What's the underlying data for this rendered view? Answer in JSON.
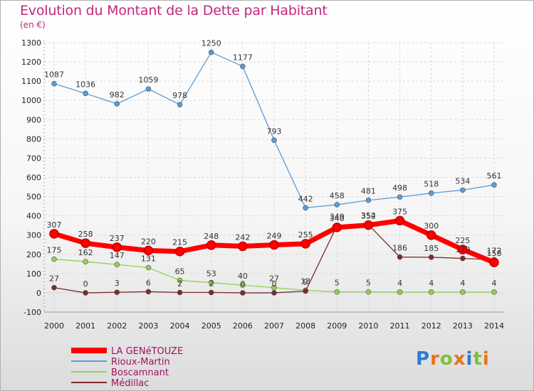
{
  "title": "Evolution du Montant de la Dette par Habitant",
  "subtitle": "(en €)",
  "logo": "Proxiti",
  "chart_data": {
    "type": "line",
    "title": "Evolution du Montant de la Dette par Habitant",
    "ylabel": "(en €)",
    "xlabel": "",
    "x": [
      2000,
      2001,
      2002,
      2003,
      2004,
      2005,
      2006,
      2007,
      2008,
      2009,
      2010,
      2011,
      2012,
      2013,
      2014
    ],
    "ylim": [
      -100,
      1300
    ],
    "yticks": [
      -100,
      0,
      100,
      200,
      300,
      400,
      500,
      600,
      700,
      800,
      900,
      1000,
      1100,
      1200,
      1300
    ],
    "grid": true,
    "legend": "bottom-left",
    "series": [
      {
        "name": "LA GENéTOUZE",
        "color": "#ff0000",
        "values": [
          307,
          258,
          237,
          220,
          215,
          248,
          242,
          249,
          255,
          340,
          352,
          375,
          300,
          225,
          158
        ]
      },
      {
        "name": "Rioux-Martin",
        "color": "#5b9bd5",
        "values": [
          1087,
          1036,
          982,
          1059,
          978,
          1250,
          1177,
          793,
          442,
          458,
          481,
          498,
          518,
          534,
          561
        ]
      },
      {
        "name": "Boscamnant",
        "color": "#92d050",
        "values": [
          175,
          162,
          147,
          131,
          65,
          53,
          40,
          27,
          13,
          5,
          5,
          4,
          4,
          4,
          4
        ]
      },
      {
        "name": "Médillac",
        "color": "#7b2c2c",
        "values": [
          27,
          0,
          3,
          6,
          2,
          2,
          0,
          0,
          9,
          349,
          354,
          186,
          185,
          179,
          172
        ]
      }
    ]
  }
}
